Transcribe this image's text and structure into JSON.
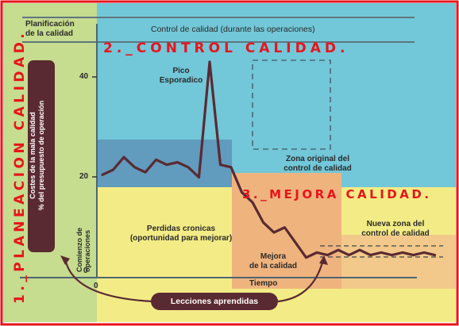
{
  "zones": {
    "planning_title": "Planificación\nde la calidad",
    "control_title": "Control de calidad (durante las operaciones)"
  },
  "annotations": {
    "big_1": "1._PLANEACION CALIDAD.",
    "big_2": "2._CONTROL CALIDAD.",
    "big_3": "3._MEJORA CALIDAD.",
    "sporadic_peak": "Pico\nEsporadico",
    "original_zone": "Zona original del\ncontrol de calidad",
    "chronic_waste": "Perdidas cronicas\n(oportunidad para mejorar)",
    "improvement": "Mejora\nde la calidad",
    "new_zone": "Nueva zona del\ncontrol de calidad",
    "start_operations": "Comienzo de\noperaciones",
    "lessons": "Lecciones aprendidas"
  },
  "y_axis": {
    "label": "Costes de la mala calidad\n% del presupuesto de operación",
    "ticks": [
      "40",
      "20",
      "0"
    ]
  },
  "x_axis": {
    "label": "Tiempo",
    "origin": "0"
  },
  "colors": {
    "green": "#c6dc8e",
    "blue": "#72c7d8",
    "yellow": "#f3ec86",
    "orange": "#efb37e",
    "dark_blue": "#5e93b8",
    "line": "#5a2a32",
    "red": "#e8141b",
    "label_box": "#5a2a32"
  },
  "chart_data": {
    "type": "line",
    "ylim": [
      0,
      45
    ],
    "series": [
      {
        "values": [
          [
            0,
            20.5
          ],
          [
            6,
            21.5
          ],
          [
            12,
            24
          ],
          [
            18,
            22
          ],
          [
            24,
            21
          ],
          [
            30,
            23.5
          ],
          [
            36,
            22.5
          ],
          [
            42,
            23
          ],
          [
            48,
            22
          ],
          [
            54,
            20
          ],
          [
            60,
            43
          ],
          [
            66,
            22.5
          ],
          [
            72,
            22
          ],
          [
            78,
            17
          ],
          [
            84,
            15
          ],
          [
            90,
            11
          ],
          [
            96,
            9
          ],
          [
            102,
            10
          ],
          [
            108,
            7
          ],
          [
            114,
            4
          ],
          [
            120,
            5
          ],
          [
            126,
            4.5
          ],
          [
            132,
            5.5
          ],
          [
            138,
            4.5
          ],
          [
            144,
            5.5
          ],
          [
            150,
            4.5
          ],
          [
            156,
            5
          ],
          [
            162,
            4.5
          ],
          [
            168,
            5
          ],
          [
            174,
            4.5
          ],
          [
            180,
            5
          ],
          [
            186,
            4.5
          ]
        ]
      }
    ]
  }
}
